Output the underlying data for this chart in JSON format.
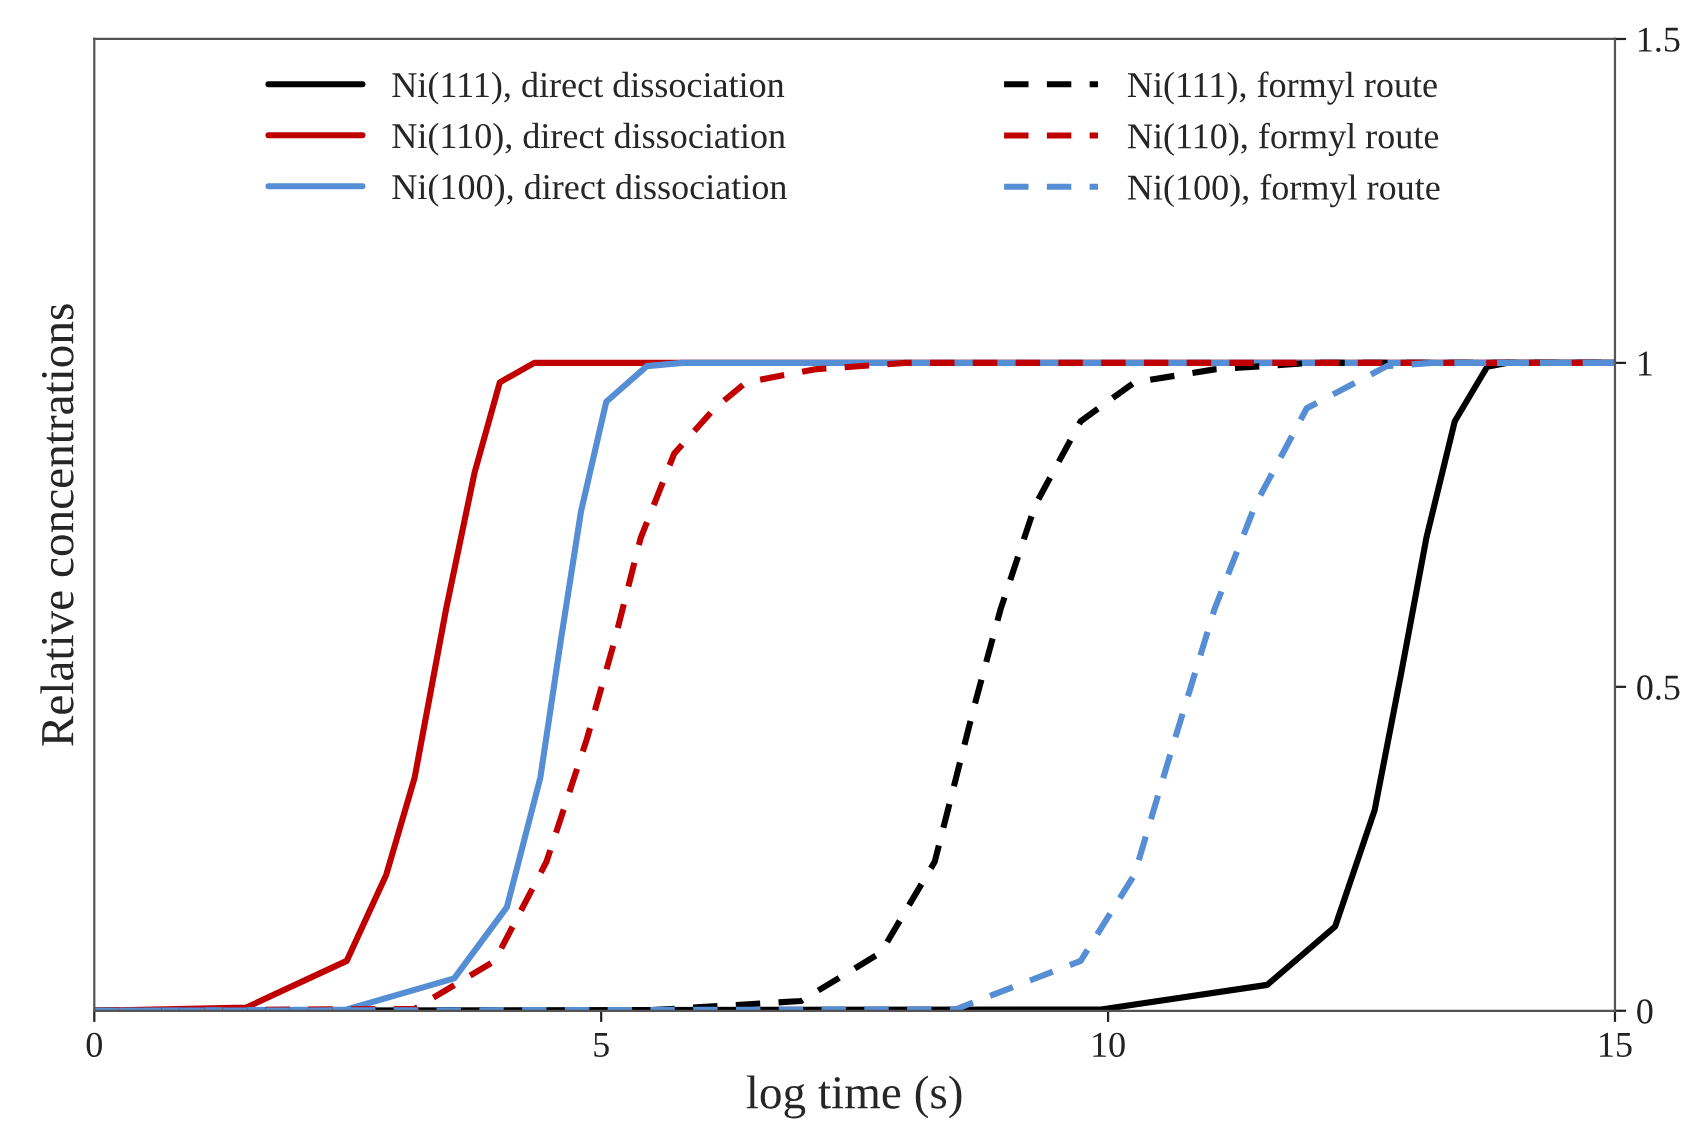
{
  "chart_data": {
    "type": "line",
    "xlabel": "log time (s)",
    "ylabel": "Relative concentrations",
    "xlim": [
      0,
      15
    ],
    "xticks": [
      0,
      5,
      10,
      15
    ],
    "ylim": [
      0,
      1.5
    ],
    "yticks": [
      0,
      0.5,
      1,
      1.5
    ],
    "grid": false,
    "legend": "top",
    "marker": "none",
    "series": [
      {
        "name": "Ni(111), direct dissociation",
        "color": "#000000",
        "line_style": "solid",
        "x": [
          0,
          9.93,
          11.57,
          12.24,
          12.63,
          12.89,
          13.14,
          13.42,
          13.74,
          13.93,
          15
        ],
        "values": [
          0,
          0.002,
          0.04,
          0.13,
          0.31,
          0.52,
          0.73,
          0.91,
          0.994,
          1,
          1
        ]
      },
      {
        "name": "Ni(110), direct dissociation",
        "color": "#c00000",
        "line_style": "solid",
        "x": [
          0,
          1.5,
          2.49,
          2.88,
          3.16,
          3.47,
          3.75,
          4.0,
          4.34,
          15
        ],
        "values": [
          0,
          0.005,
          0.077,
          0.21,
          0.36,
          0.62,
          0.83,
          0.97,
          1,
          1
        ]
      },
      {
        "name": "Ni(100), direct dissociation",
        "color": "#558ed5",
        "line_style": "solid",
        "x": [
          0,
          2.49,
          3.55,
          4.07,
          4.4,
          4.6,
          4.8,
          5.05,
          5.45,
          5.8,
          15
        ],
        "values": [
          0,
          0.002,
          0.05,
          0.16,
          0.36,
          0.57,
          0.77,
          0.94,
          0.995,
          1,
          1
        ]
      },
      {
        "name": "Ni(111), formyl route",
        "color": "#000000",
        "line_style": "dashed",
        "x": [
          0,
          5.5,
          6.97,
          7.76,
          8.29,
          8.68,
          8.94,
          9.28,
          9.73,
          10.26,
          11.05,
          12,
          15
        ],
        "values": [
          0,
          0.001,
          0.015,
          0.09,
          0.23,
          0.47,
          0.62,
          0.78,
          0.91,
          0.97,
          0.99,
          1,
          1
        ]
      },
      {
        "name": "Ni(110), formyl route",
        "color": "#c00000",
        "line_style": "dashed",
        "x": [
          0,
          3.16,
          3.95,
          4.46,
          4.86,
          5.13,
          5.39,
          5.72,
          6.12,
          6.43,
          7.1,
          8,
          15
        ],
        "values": [
          0,
          0.003,
          0.077,
          0.23,
          0.42,
          0.57,
          0.73,
          0.86,
          0.93,
          0.97,
          0.99,
          1,
          1
        ]
      },
      {
        "name": "Ni(100), formyl route",
        "color": "#558ed5",
        "line_style": "dashed",
        "x": [
          0,
          8.49,
          9.73,
          10.26,
          10.66,
          11.05,
          11.45,
          11.96,
          12.75,
          13.2,
          15
        ],
        "values": [
          0,
          0.002,
          0.077,
          0.21,
          0.42,
          0.62,
          0.78,
          0.93,
          0.995,
          1,
          1
        ]
      }
    ]
  }
}
